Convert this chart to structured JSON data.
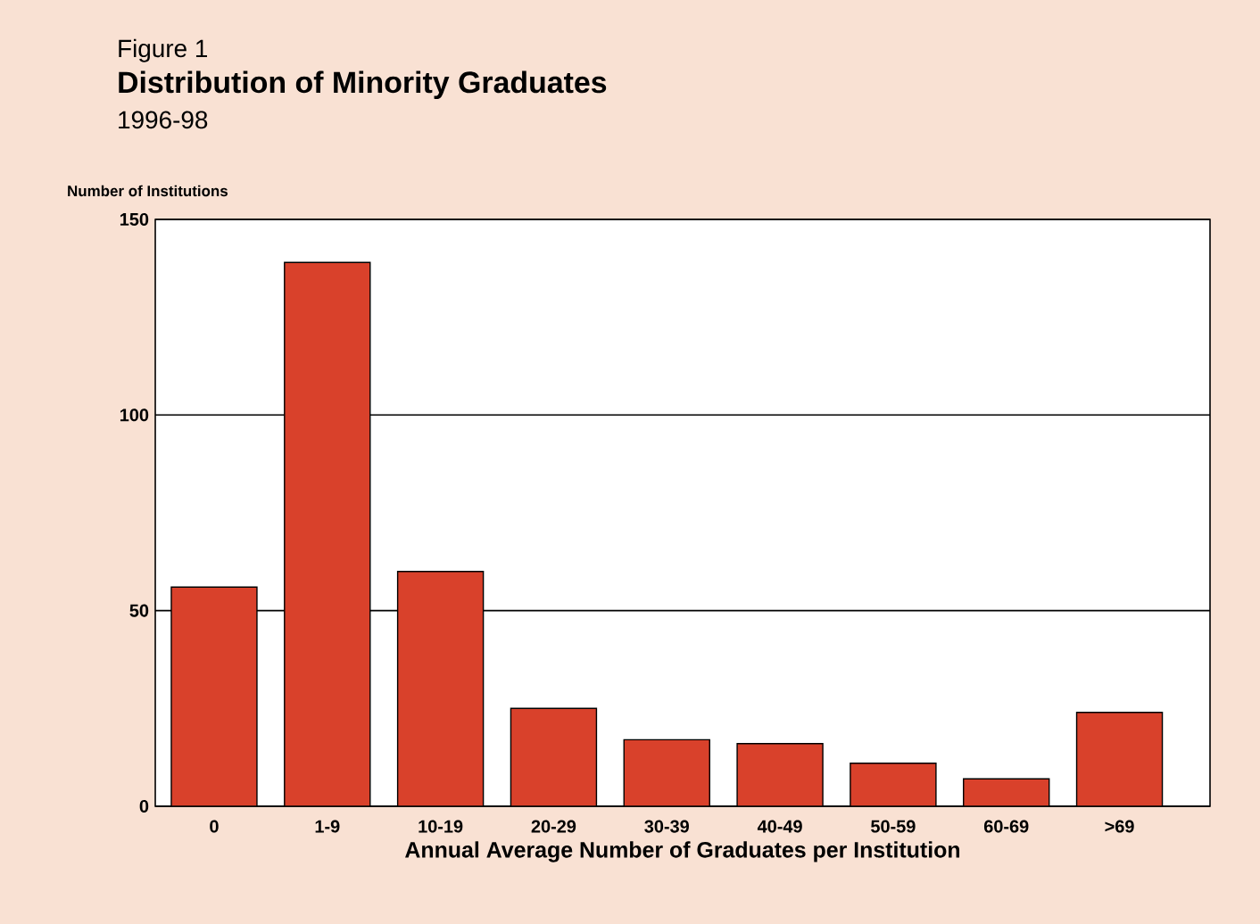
{
  "chart_data": {
    "type": "bar",
    "title": "Distribution of Minority Graduates",
    "subtitle": "1996-98",
    "annotations": [
      "Figure 1"
    ],
    "ylabel": "Number of Institutions",
    "xlabel": "Annual Average Number of Graduates per Institution",
    "categories": [
      "0",
      "1-9",
      "10-19",
      "20-29",
      "30-39",
      "40-49",
      "50-59",
      "60-69",
      ">69"
    ],
    "values": [
      56,
      139,
      60,
      25,
      17,
      16,
      11,
      7,
      24
    ],
    "color": "#d9412b",
    "ylim": [
      0,
      150
    ],
    "yticks": [
      0,
      50,
      100,
      150
    ],
    "grid": "y"
  }
}
